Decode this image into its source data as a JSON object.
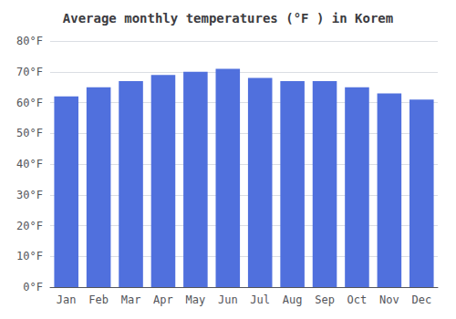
{
  "chart_data": {
    "type": "bar",
    "title": "Average monthly temperatures (°F ) in Korem",
    "categories": [
      "Jan",
      "Feb",
      "Mar",
      "Apr",
      "May",
      "Jun",
      "Jul",
      "Aug",
      "Sep",
      "Oct",
      "Nov",
      "Dec"
    ],
    "values": [
      62,
      65,
      67,
      69,
      70,
      71,
      68,
      67,
      67,
      65,
      63,
      61
    ],
    "ylim": [
      0,
      80
    ],
    "yticks": [
      {
        "value": 0,
        "label": "0°F"
      },
      {
        "value": 10,
        "label": "10°F"
      },
      {
        "value": 20,
        "label": "20°F"
      },
      {
        "value": 30,
        "label": "30°F"
      },
      {
        "value": 40,
        "label": "40°F"
      },
      {
        "value": 50,
        "label": "50°F"
      },
      {
        "value": 60,
        "label": "60°F"
      },
      {
        "value": 70,
        "label": "70°F"
      },
      {
        "value": 80,
        "label": "80°F"
      }
    ],
    "grid": true
  }
}
